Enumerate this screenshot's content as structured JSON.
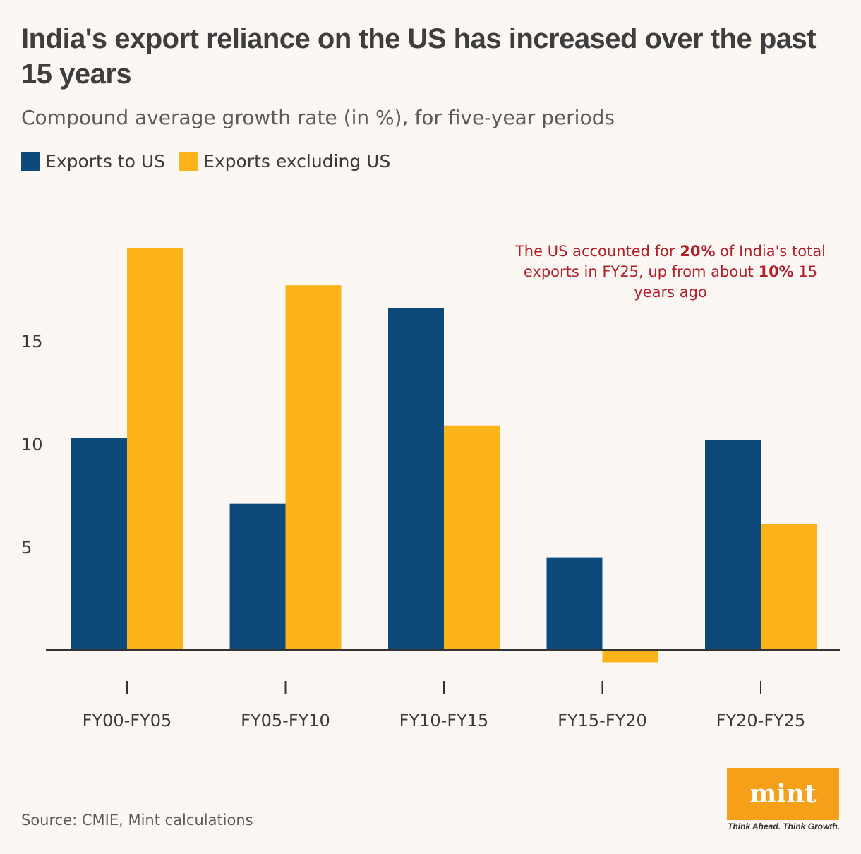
{
  "colors": {
    "us": "#0d4a7a",
    "ex_us": "#fdb41b",
    "annotation": "#b0202a",
    "axis": "#333333",
    "background": "#fdf7f4"
  },
  "annotation": {
    "part1": "The US accounted for ",
    "bold1": "20%",
    "part2": " of India's total exports in FY25, up from about ",
    "bold2": "10%",
    "part3": " 15 years ago"
  },
  "source": "Source: CMIE, Mint calculations",
  "logo": {
    "text": "mint",
    "tagline": "Think Ahead. Think Growth."
  },
  "chart_data": {
    "type": "bar",
    "title": "India's export reliance on the US has increased over the past 15 years",
    "subtitle": "Compound average growth rate (in %), for five-year periods",
    "categories": [
      "FY00-FY05",
      "FY05-FY10",
      "FY10-FY15",
      "FY15-FY20",
      "FY20-FY25"
    ],
    "series": [
      {
        "name": "Exports to US",
        "values": [
          10.3,
          7.1,
          16.6,
          4.5,
          10.2
        ]
      },
      {
        "name": "Exports excluding US",
        "values": [
          19.5,
          17.7,
          10.9,
          -0.6,
          6.1
        ]
      }
    ],
    "yticks": [
      5,
      10,
      15
    ],
    "ylim": [
      -2,
      20
    ],
    "xlabel": "",
    "ylabel": "",
    "legend": "top-left",
    "grid": false
  }
}
